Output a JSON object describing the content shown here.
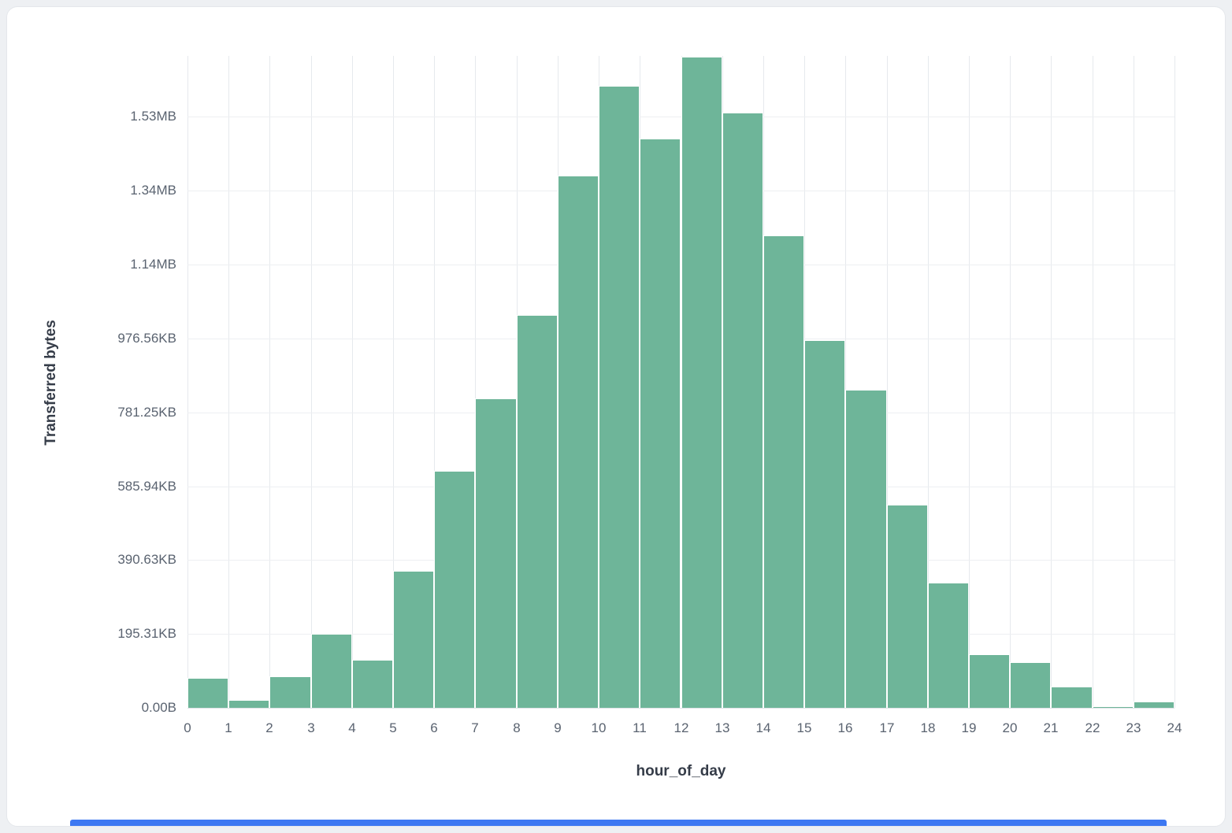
{
  "chart_data": {
    "type": "bar",
    "title": "",
    "xlabel": "hour_of_day",
    "ylabel": "Transferred bytes",
    "bar_color": "#6eb599",
    "accent_bottom_bar_color": "#3d78f2",
    "grid": true,
    "legend": "none",
    "categories": [
      0,
      1,
      2,
      3,
      4,
      5,
      6,
      7,
      8,
      9,
      10,
      11,
      12,
      13,
      14,
      15,
      16,
      17,
      18,
      19,
      20,
      21,
      22,
      23
    ],
    "values_bytes": [
      81000,
      21000,
      85000,
      200000,
      130000,
      371000,
      642000,
      838000,
      1064000,
      1440000,
      1685000,
      1542000,
      1762000,
      1611000,
      1280000,
      996000,
      862000,
      550000,
      339000,
      145000,
      124000,
      58000,
      4000,
      17000
    ],
    "x_ticks": [
      "0",
      "1",
      "2",
      "3",
      "4",
      "5",
      "6",
      "7",
      "8",
      "9",
      "10",
      "11",
      "12",
      "13",
      "14",
      "15",
      "16",
      "17",
      "18",
      "19",
      "20",
      "21",
      "22",
      "23",
      "24"
    ],
    "y_ticks": [
      {
        "label": "0.00B",
        "bytes": 0
      },
      {
        "label": "195.31KB",
        "bytes": 200000
      },
      {
        "label": "390.63KB",
        "bytes": 400000
      },
      {
        "label": "585.94KB",
        "bytes": 600000
      },
      {
        "label": "781.25KB",
        "bytes": 800000
      },
      {
        "label": "976.56KB",
        "bytes": 1000000
      },
      {
        "label": "1.14MB",
        "bytes": 1200000
      },
      {
        "label": "1.34MB",
        "bytes": 1400000
      },
      {
        "label": "1.53MB",
        "bytes": 1600000
      }
    ],
    "xlim": [
      0,
      24
    ],
    "ylim": [
      0,
      1765000
    ]
  }
}
